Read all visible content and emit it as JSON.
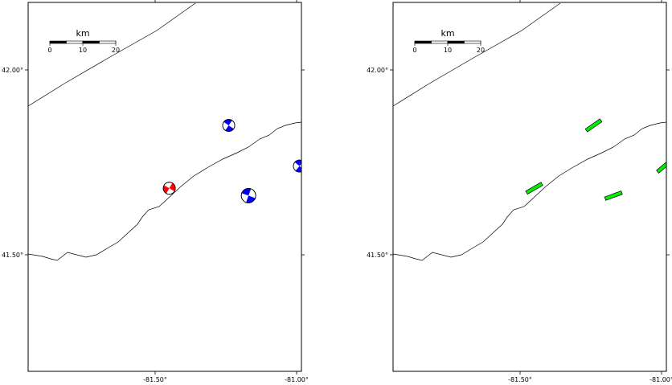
{
  "maps": [
    {
      "name": "beachball-map",
      "lat_labels": [
        {
          "lat": 42.0,
          "text": "42.00°"
        },
        {
          "lat": 41.5,
          "text": "41.50°"
        }
      ],
      "lon_labels": [
        {
          "lon": -81.5,
          "text": "-81.50°"
        },
        {
          "lon": -81.0,
          "text": "-81.00°"
        }
      ],
      "scale": {
        "unit": "km",
        "ticks": [
          "0",
          "10",
          "20"
        ]
      }
    },
    {
      "name": "fault-plane-map",
      "lat_labels": [
        {
          "lat": 42.0,
          "text": "42.00°"
        },
        {
          "lat": 41.5,
          "text": "41.50°"
        }
      ],
      "lon_labels": [
        {
          "lon": -81.5,
          "text": "-81.50°"
        },
        {
          "lon": -81.0,
          "text": "-81.00°"
        }
      ],
      "scale": {
        "unit": "km",
        "ticks": [
          "0",
          "10",
          "20"
        ]
      }
    }
  ],
  "colors": {
    "strike_slip": "#ff0000",
    "thrust": "#0000ff",
    "fault_plane": "#00ee00"
  },
  "events": [
    {
      "id": "event-1",
      "lon": -81.45,
      "lat": 41.68,
      "mechanism": "strike-slip",
      "color": "#ff0000",
      "strike_deg": 30
    },
    {
      "id": "event-2",
      "lon": -81.24,
      "lat": 41.85,
      "mechanism": "reverse",
      "color": "#0000ff",
      "strike_deg": 35
    },
    {
      "id": "event-3",
      "lon": -81.17,
      "lat": 41.66,
      "mechanism": "reverse",
      "color": "#0000ff",
      "strike_deg": 20
    },
    {
      "id": "event-4",
      "lon": -80.99,
      "lat": 41.74,
      "mechanism": "reverse",
      "color": "#0000ff",
      "strike_deg": 40
    }
  ]
}
